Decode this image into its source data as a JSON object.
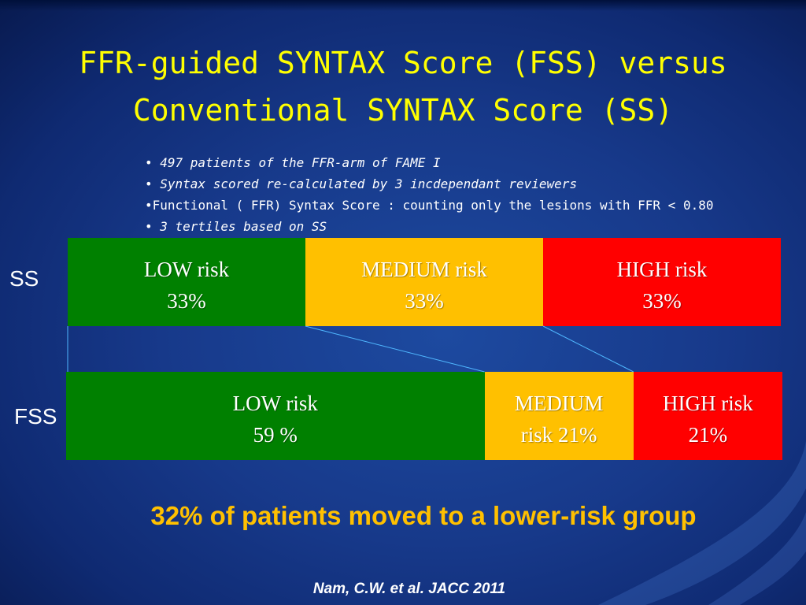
{
  "slide": {
    "title_line1": "FFR-guided SYNTAX Score (FSS) versus",
    "title_line2": "Conventional SYNTAX Score (SS)",
    "bullets": [
      {
        "marker": "• ",
        "text": "497 patients of the FFR-arm of FAME I"
      },
      {
        "marker": "• ",
        "text": "Syntax scored re-calculated by 3 incdependant reviewers"
      },
      {
        "marker": "•",
        "text": "Functional ( FFR) Syntax Score : counting only the lesions with FFR <  0.80"
      },
      {
        "marker": "• ",
        "text": "3 tertiles based on SS"
      }
    ],
    "conclusion": "32% of patients moved to a lower-risk group",
    "citation": "Nam, C.W. et al. JACC 2011"
  },
  "colors": {
    "low": "#008000",
    "medium": "#ffc000",
    "high": "#ff0000",
    "title": "#ffff00",
    "conclusion": "#ffc000"
  },
  "ss_bar": {
    "label": "SS",
    "segments": [
      {
        "risk": "low",
        "line1": "LOW risk",
        "line2": "33%",
        "percent": 33
      },
      {
        "risk": "medium",
        "line1": "MEDIUM risk",
        "line2": "33%",
        "percent": 33
      },
      {
        "risk": "high",
        "line1": "HIGH risk",
        "line2": "33%",
        "percent": 33
      }
    ]
  },
  "fss_bar": {
    "label": "FSS",
    "segments": [
      {
        "risk": "low",
        "line1": "LOW risk",
        "line2": "59 %",
        "percent": 59
      },
      {
        "risk": "medium",
        "line1": "MEDIUM",
        "line2": "risk 21%",
        "percent": 21
      },
      {
        "risk": "high",
        "line1": "HIGH risk",
        "line2": "21%",
        "percent": 21
      }
    ]
  }
}
